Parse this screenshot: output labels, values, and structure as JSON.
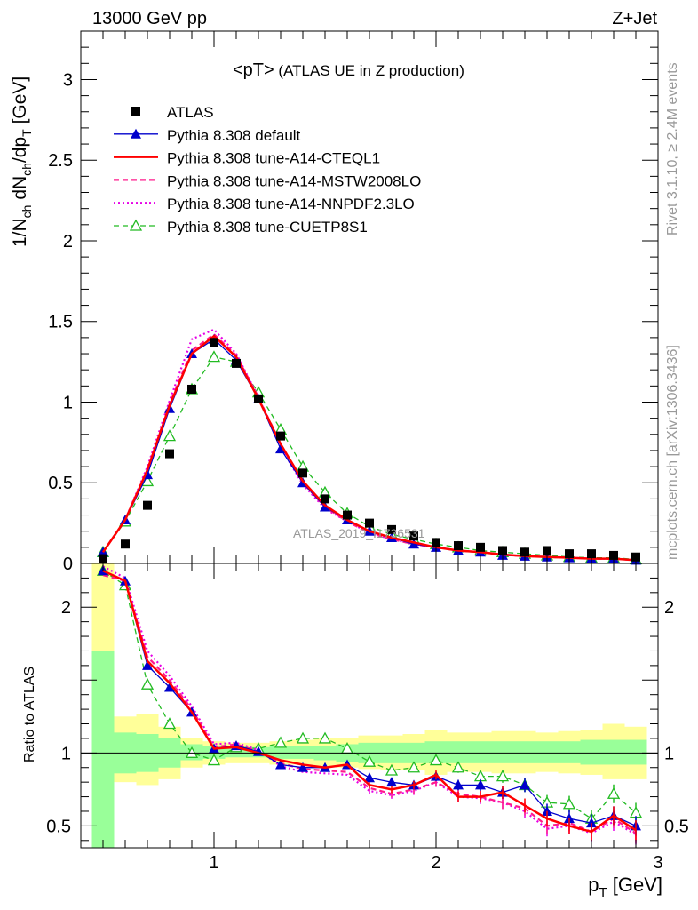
{
  "header": {
    "energy_label": "13000 GeV pp",
    "process_label": "Z+Jet",
    "rivet_label": "Rivet 3.1.10, ≥ 2.4M events",
    "mcplots_label": "mcplots.cern.ch [arXiv:1306.3436]",
    "analysis_label": "ATLAS_2019_I1736531"
  },
  "chart_data": [
    {
      "type": "scatter",
      "panel": "main",
      "title_main": "<pT>",
      "title_sub": " (ATLAS UE in Z production)",
      "ylabel": "1/N_ch dN_ch/dp_T [GeV]",
      "ylabel_parts": {
        "a": "1/N",
        "a_sub": "ch",
        "b": " dN",
        "b_sub": "ch",
        "c": "/dp",
        "c_sub": "T",
        "d": " [GeV]"
      },
      "xlabel_parts": {
        "a": "p",
        "a_sub": "T",
        "b": " [GeV]"
      },
      "xlim": [
        0.4,
        3.0
      ],
      "ylim": [
        0,
        3.3
      ],
      "x_ticks": [
        "1",
        "2",
        "3"
      ],
      "y_ticks": [
        "0",
        "0.5",
        "1",
        "1.5",
        "2",
        "2.5",
        "3"
      ],
      "x": [
        0.5,
        0.6,
        0.7,
        0.8,
        0.9,
        1.0,
        1.1,
        1.2,
        1.3,
        1.4,
        1.5,
        1.6,
        1.7,
        1.8,
        1.9,
        2.0,
        2.1,
        2.2,
        2.3,
        2.4,
        2.5,
        2.6,
        2.7,
        2.8,
        2.9
      ],
      "legend": [
        "ATLAS",
        "Pythia 8.308 default",
        "Pythia 8.308 tune-A14-CTEQL1",
        "Pythia 8.308 tune-A14-MSTW2008LO",
        "Pythia 8.308 tune-A14-NNPDF2.3LO",
        "Pythia 8.308 tune-CUETP8S1"
      ],
      "series": [
        {
          "name": "ATLAS",
          "color": "#000000",
          "values": [
            0.03,
            0.12,
            0.36,
            0.68,
            1.08,
            1.37,
            1.24,
            1.02,
            0.79,
            0.56,
            0.4,
            0.3,
            0.25,
            0.21,
            0.17,
            0.13,
            0.11,
            0.1,
            0.08,
            0.07,
            0.08,
            0.06,
            0.06,
            0.05,
            0.04
          ]
        },
        {
          "name": "Pythia 8.308 default",
          "color": "#0000cc",
          "values": [
            0.07,
            0.27,
            0.55,
            0.96,
            1.3,
            1.39,
            1.26,
            1.02,
            0.71,
            0.5,
            0.35,
            0.27,
            0.2,
            0.16,
            0.12,
            0.1,
            0.08,
            0.07,
            0.05,
            0.045,
            0.04,
            0.035,
            0.03,
            0.03,
            0.02
          ]
        },
        {
          "name": "Pythia 8.308 tune-A14-CTEQL1",
          "color": "#ff0000",
          "values": [
            0.07,
            0.27,
            0.58,
            0.98,
            1.3,
            1.41,
            1.28,
            1.02,
            0.74,
            0.51,
            0.36,
            0.27,
            0.2,
            0.16,
            0.13,
            0.1,
            0.08,
            0.07,
            0.055,
            0.045,
            0.04,
            0.035,
            0.03,
            0.03,
            0.02
          ]
        },
        {
          "name": "Pythia 8.308 tune-A14-MSTW2008LO",
          "color": "#ff1a8c",
          "values": [
            0.07,
            0.27,
            0.58,
            0.99,
            1.32,
            1.42,
            1.29,
            1.03,
            0.74,
            0.5,
            0.35,
            0.26,
            0.19,
            0.15,
            0.12,
            0.1,
            0.08,
            0.07,
            0.055,
            0.045,
            0.04,
            0.035,
            0.03,
            0.03,
            0.02
          ]
        },
        {
          "name": "Pythia 8.308 tune-A14-NNPDF2.3LO",
          "color": "#e600e6",
          "values": [
            0.07,
            0.27,
            0.6,
            1.01,
            1.39,
            1.45,
            1.3,
            1.03,
            0.72,
            0.49,
            0.34,
            0.26,
            0.19,
            0.15,
            0.12,
            0.1,
            0.08,
            0.07,
            0.055,
            0.045,
            0.04,
            0.035,
            0.03,
            0.03,
            0.02
          ]
        },
        {
          "name": "Pythia 8.308 tune-CUETP8S1",
          "color": "#22bb22",
          "values": [
            0.07,
            0.26,
            0.51,
            0.79,
            1.08,
            1.28,
            1.25,
            1.06,
            0.83,
            0.6,
            0.44,
            0.31,
            0.23,
            0.18,
            0.15,
            0.12,
            0.1,
            0.08,
            0.07,
            0.06,
            0.05,
            0.04,
            0.035,
            0.035,
            0.025
          ]
        }
      ]
    },
    {
      "type": "line",
      "panel": "ratio",
      "ylabel": "Ratio to ATLAS",
      "xlim": [
        0.4,
        3.0
      ],
      "ylim": [
        0.35,
        2.3
      ],
      "x_ticks": [
        "1",
        "2",
        "3"
      ],
      "y_ticks": [
        "0.5",
        "1",
        "2"
      ],
      "x": [
        0.5,
        0.6,
        0.7,
        0.8,
        0.9,
        1.0,
        1.1,
        1.2,
        1.3,
        1.4,
        1.5,
        1.6,
        1.7,
        1.8,
        1.9,
        2.0,
        2.1,
        2.2,
        2.3,
        2.4,
        2.5,
        2.6,
        2.7,
        2.8,
        2.9
      ],
      "band_green": [
        [
          0.3,
          1.7
        ],
        [
          0.86,
          1.14
        ],
        [
          0.87,
          1.13
        ],
        [
          0.9,
          1.1
        ],
        [
          0.95,
          1.06
        ],
        [
          0.96,
          1.05
        ],
        [
          0.97,
          1.04
        ],
        [
          0.97,
          1.04
        ],
        [
          0.96,
          1.05
        ],
        [
          0.96,
          1.05
        ],
        [
          0.95,
          1.05
        ],
        [
          0.94,
          1.06
        ],
        [
          0.93,
          1.07
        ],
        [
          0.93,
          1.07
        ],
        [
          0.93,
          1.07
        ],
        [
          0.93,
          1.08
        ],
        [
          0.93,
          1.08
        ],
        [
          0.93,
          1.08
        ],
        [
          0.93,
          1.08
        ],
        [
          0.93,
          1.08
        ],
        [
          0.93,
          1.08
        ],
        [
          0.93,
          1.08
        ],
        [
          0.92,
          1.09
        ],
        [
          0.92,
          1.09
        ],
        [
          0.92,
          1.09
        ]
      ],
      "band_yellow": [
        [
          0.3,
          2.3
        ],
        [
          0.8,
          1.25
        ],
        [
          0.78,
          1.27
        ],
        [
          0.82,
          1.18
        ],
        [
          0.9,
          1.1
        ],
        [
          0.92,
          1.08
        ],
        [
          0.93,
          1.07
        ],
        [
          0.93,
          1.07
        ],
        [
          0.92,
          1.08
        ],
        [
          0.92,
          1.09
        ],
        [
          0.91,
          1.1
        ],
        [
          0.9,
          1.1
        ],
        [
          0.89,
          1.12
        ],
        [
          0.88,
          1.12
        ],
        [
          0.88,
          1.13
        ],
        [
          0.85,
          1.16
        ],
        [
          0.87,
          1.14
        ],
        [
          0.87,
          1.14
        ],
        [
          0.86,
          1.15
        ],
        [
          0.86,
          1.15
        ],
        [
          0.87,
          1.14
        ],
        [
          0.86,
          1.15
        ],
        [
          0.85,
          1.16
        ],
        [
          0.82,
          1.2
        ],
        [
          0.82,
          1.18
        ]
      ],
      "band_colors": {
        "green": "#99ff99",
        "yellow": "#ffff99"
      },
      "series": [
        {
          "name": "Pythia 8.308 default",
          "color": "#0000cc",
          "values": [
            2.25,
            2.18,
            1.6,
            1.45,
            1.28,
            1.03,
            1.05,
            1.01,
            0.92,
            0.9,
            0.9,
            0.92,
            0.83,
            0.8,
            0.78,
            0.84,
            0.78,
            0.78,
            0.73,
            0.78,
            0.6,
            0.55,
            0.52,
            0.57,
            0.5
          ]
        },
        {
          "name": "Pythia 8.308 tune-A14-CTEQL1",
          "color": "#ff0000",
          "values": [
            2.25,
            2.18,
            1.63,
            1.48,
            1.28,
            1.03,
            1.04,
            1.0,
            0.95,
            0.92,
            0.9,
            0.92,
            0.78,
            0.75,
            0.78,
            0.85,
            0.7,
            0.7,
            0.73,
            0.64,
            0.55,
            0.5,
            0.46,
            0.57,
            0.47
          ]
        },
        {
          "name": "Pythia 8.308 tune-A14-MSTW2008LO",
          "color": "#ff1a8c",
          "values": [
            2.22,
            2.18,
            1.66,
            1.5,
            1.3,
            1.04,
            1.06,
            1.01,
            0.93,
            0.89,
            0.88,
            0.87,
            0.76,
            0.72,
            0.75,
            0.8,
            0.72,
            0.7,
            0.66,
            0.62,
            0.5,
            0.52,
            0.46,
            0.55,
            0.45
          ]
        },
        {
          "name": "Pythia 8.308 tune-A14-NNPDF2.3LO",
          "color": "#e600e6",
          "values": [
            2.28,
            2.2,
            1.7,
            1.53,
            1.32,
            1.06,
            1.07,
            1.02,
            0.91,
            0.87,
            0.86,
            0.85,
            0.74,
            0.71,
            0.74,
            0.8,
            0.7,
            0.69,
            0.66,
            0.6,
            0.48,
            0.5,
            0.45,
            0.53,
            0.44
          ]
        },
        {
          "name": "Pythia 8.308 tune-CUETP8S1",
          "color": "#22bb22",
          "values": [
            2.25,
            2.15,
            1.47,
            1.2,
            1.0,
            0.95,
            1.04,
            1.03,
            1.07,
            1.1,
            1.1,
            1.03,
            0.94,
            0.88,
            0.9,
            0.95,
            0.9,
            0.84,
            0.84,
            0.78,
            0.66,
            0.65,
            0.55,
            0.72,
            0.59
          ]
        }
      ]
    }
  ]
}
